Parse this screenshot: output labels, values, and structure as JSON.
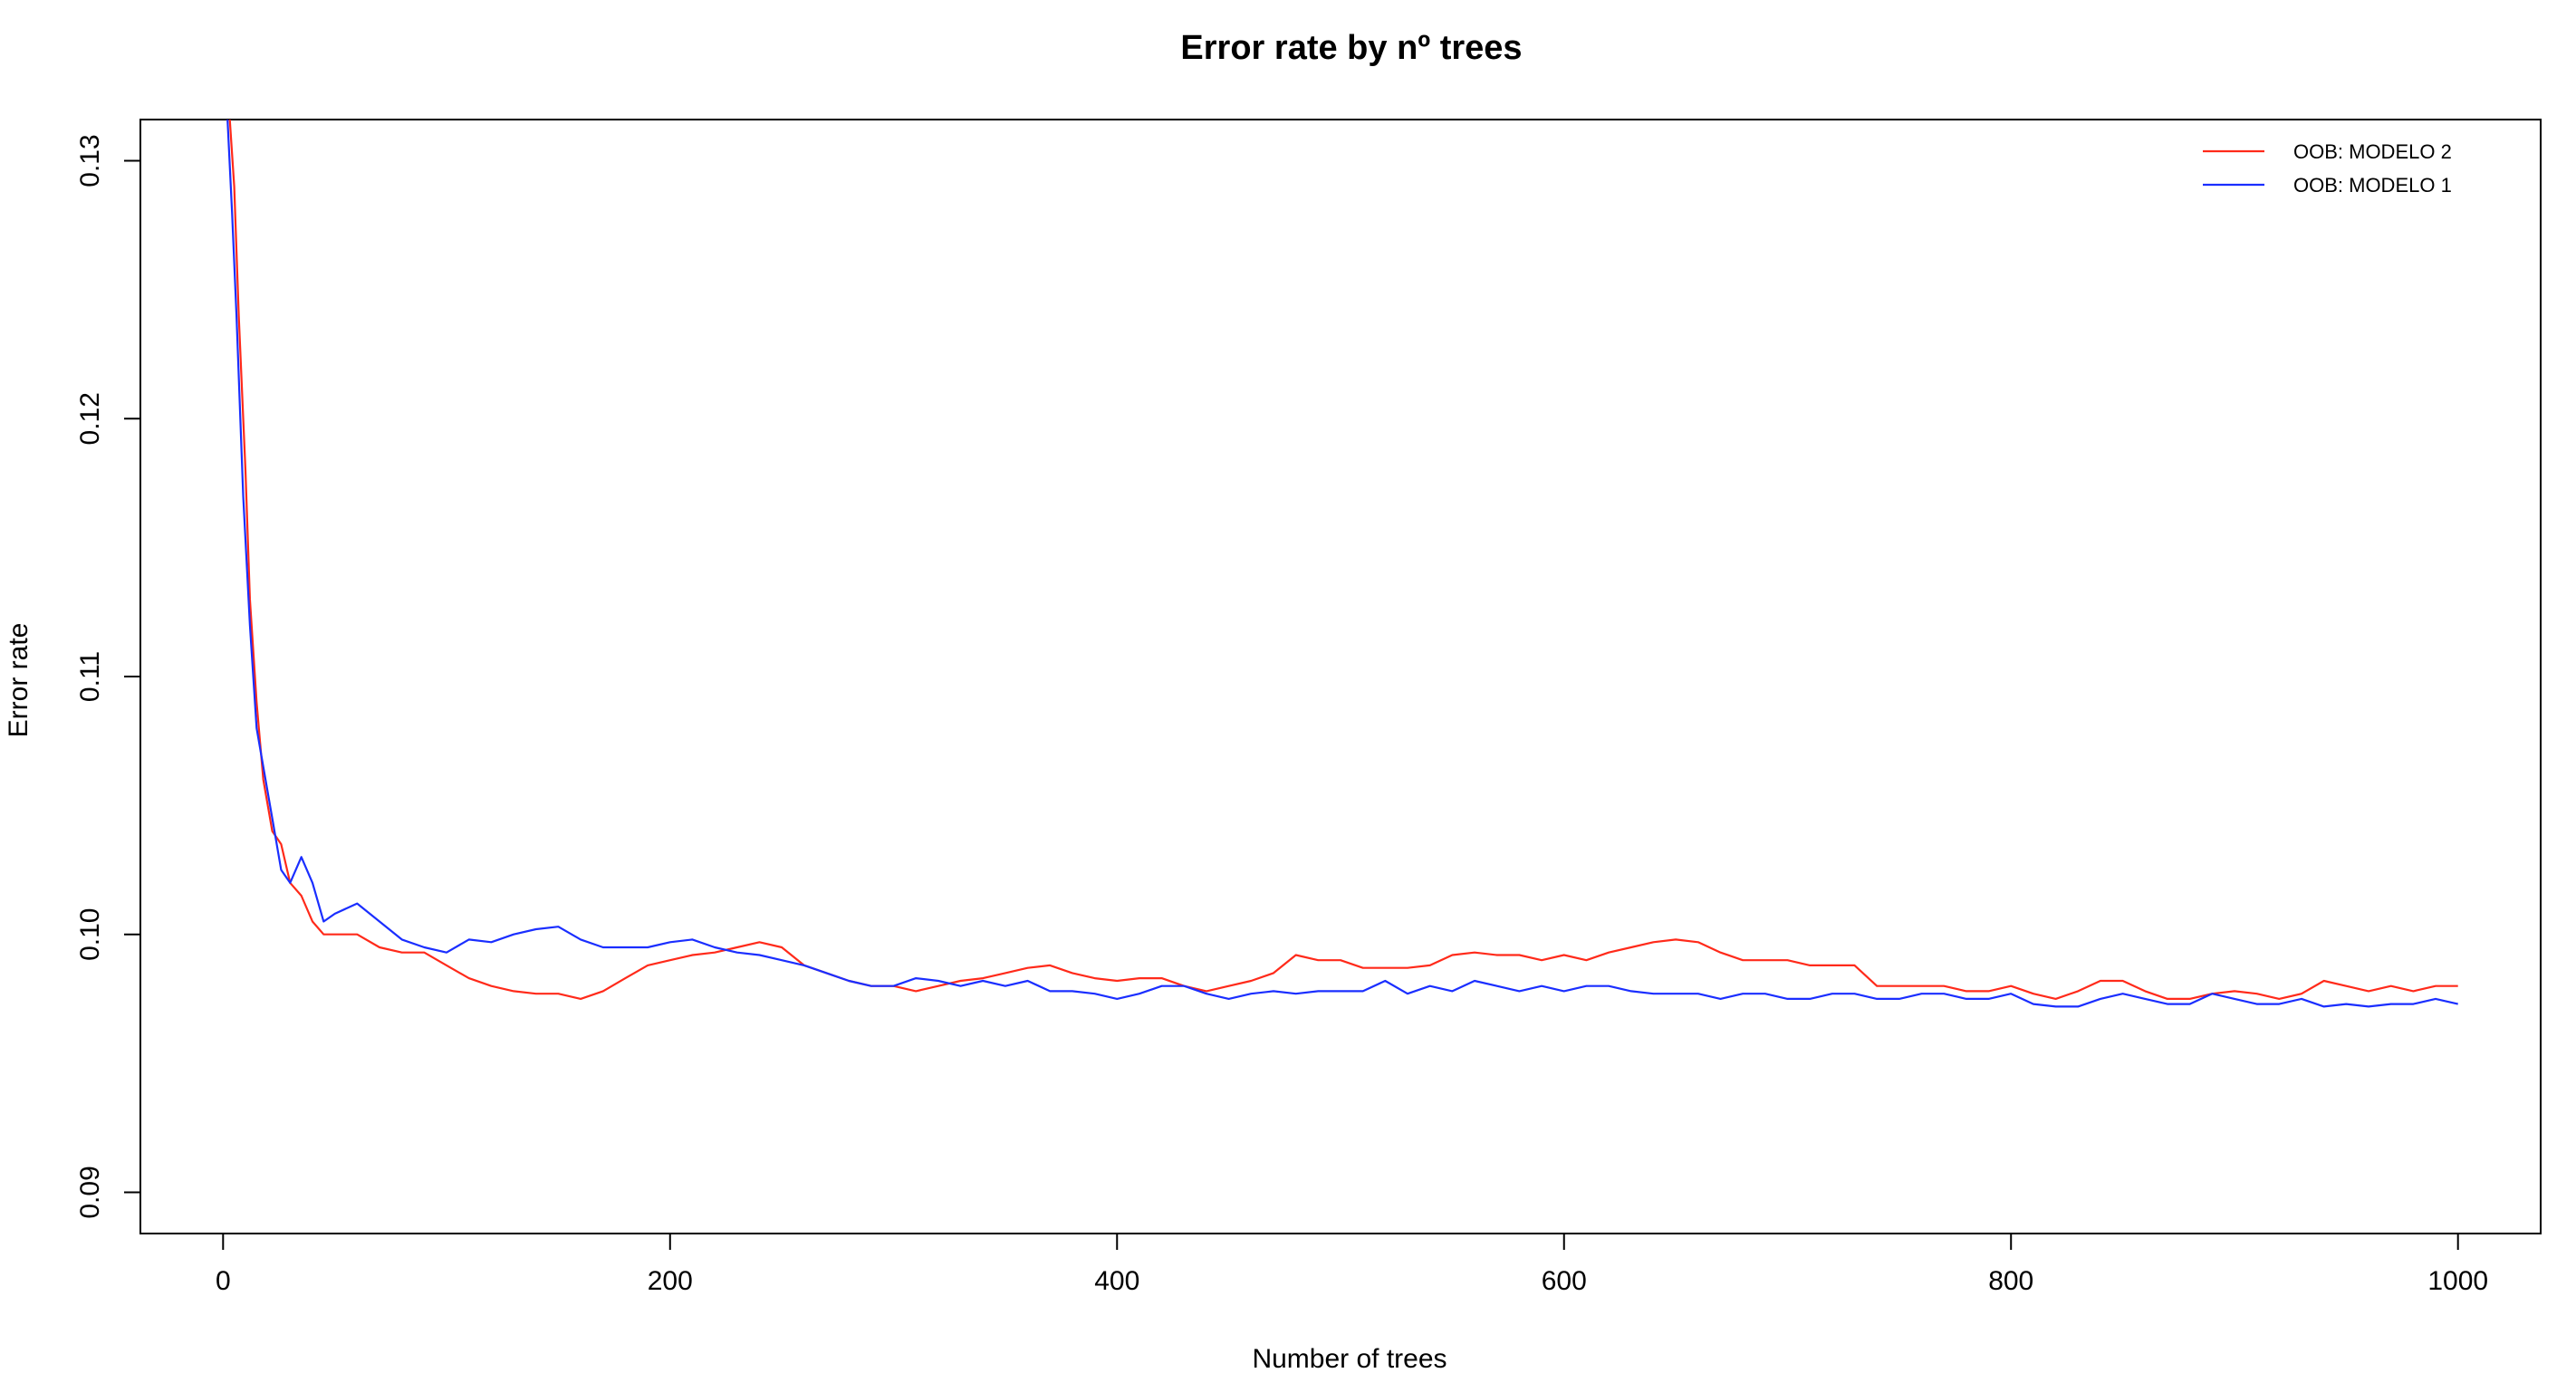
{
  "chart_data": {
    "type": "line",
    "title": "Error rate by nº trees",
    "xlabel": "Number of trees",
    "ylabel": "Error rate",
    "xlim": [
      -37,
      1037
    ],
    "ylim": [
      0.0884,
      0.1316
    ],
    "x_ticks": [
      0,
      200,
      400,
      600,
      800,
      1000
    ],
    "y_ticks": [
      0.09,
      0.1,
      0.11,
      0.12,
      0.13
    ],
    "x_tick_labels": [
      "0",
      "200",
      "400",
      "600",
      "800",
      "1000"
    ],
    "y_tick_labels": [
      "0.09",
      "0.10",
      "0.11",
      "0.12",
      "0.13"
    ],
    "grid": false,
    "legend_position": "top-right",
    "series": [
      {
        "name": "OOB: MODELO 2",
        "color": "#ff2a1a",
        "x": [
          3,
          5,
          7,
          10,
          12,
          15,
          18,
          22,
          26,
          30,
          35,
          40,
          45,
          50,
          60,
          70,
          80,
          90,
          100,
          110,
          120,
          130,
          140,
          150,
          160,
          170,
          180,
          190,
          200,
          210,
          220,
          230,
          240,
          250,
          260,
          270,
          280,
          290,
          300,
          310,
          320,
          330,
          340,
          350,
          360,
          370,
          380,
          390,
          400,
          410,
          420,
          430,
          440,
          450,
          460,
          470,
          480,
          490,
          500,
          510,
          520,
          530,
          540,
          550,
          560,
          570,
          580,
          590,
          600,
          610,
          620,
          630,
          640,
          650,
          660,
          670,
          680,
          690,
          700,
          710,
          720,
          730,
          740,
          750,
          760,
          770,
          780,
          790,
          800,
          810,
          820,
          830,
          840,
          850,
          860,
          870,
          880,
          890,
          900,
          910,
          920,
          930,
          940,
          950,
          960,
          970,
          980,
          990,
          1000
        ],
        "values": [
          0.1316,
          0.129,
          0.124,
          0.118,
          0.113,
          0.109,
          0.106,
          0.104,
          0.1035,
          0.102,
          0.1015,
          0.1005,
          0.1,
          0.1,
          0.1,
          0.0995,
          0.0993,
          0.0993,
          0.0988,
          0.0983,
          0.098,
          0.0978,
          0.0977,
          0.0977,
          0.0975,
          0.0978,
          0.0983,
          0.0988,
          0.099,
          0.0992,
          0.0993,
          0.0995,
          0.0997,
          0.0995,
          0.0988,
          0.0985,
          0.0982,
          0.098,
          0.098,
          0.0978,
          0.098,
          0.0982,
          0.0983,
          0.0985,
          0.0987,
          0.0988,
          0.0985,
          0.0983,
          0.0982,
          0.0983,
          0.0983,
          0.098,
          0.0978,
          0.098,
          0.0982,
          0.0985,
          0.0992,
          0.099,
          0.099,
          0.0987,
          0.0987,
          0.0987,
          0.0988,
          0.0992,
          0.0993,
          0.0992,
          0.0992,
          0.099,
          0.0992,
          0.099,
          0.0993,
          0.0995,
          0.0997,
          0.0998,
          0.0997,
          0.0993,
          0.099,
          0.099,
          0.099,
          0.0988,
          0.0988,
          0.0988,
          0.098,
          0.098,
          0.098,
          0.098,
          0.0978,
          0.0978,
          0.098,
          0.0977,
          0.0975,
          0.0978,
          0.0982,
          0.0982,
          0.0978,
          0.0975,
          0.0975,
          0.0977,
          0.0978,
          0.0977,
          0.0975,
          0.0977,
          0.0982,
          0.098,
          0.0978,
          0.098,
          0.0978,
          0.098,
          0.098
        ]
      },
      {
        "name": "OOB: MODELO 1",
        "color": "#1a2eff",
        "x": [
          2,
          4,
          6,
          9,
          12,
          15,
          18,
          22,
          26,
          30,
          35,
          40,
          45,
          50,
          60,
          70,
          80,
          90,
          100,
          110,
          120,
          130,
          140,
          150,
          160,
          170,
          180,
          190,
          200,
          210,
          220,
          230,
          240,
          250,
          260,
          270,
          280,
          290,
          300,
          310,
          320,
          330,
          340,
          350,
          360,
          370,
          380,
          390,
          400,
          410,
          420,
          430,
          440,
          450,
          460,
          470,
          480,
          490,
          500,
          510,
          520,
          530,
          540,
          550,
          560,
          570,
          580,
          590,
          600,
          610,
          620,
          630,
          640,
          650,
          660,
          670,
          680,
          690,
          700,
          710,
          720,
          730,
          740,
          750,
          760,
          770,
          780,
          790,
          800,
          810,
          820,
          830,
          840,
          850,
          860,
          870,
          880,
          890,
          900,
          910,
          920,
          930,
          940,
          950,
          960,
          970,
          980,
          990,
          1000
        ],
        "values": [
          0.1316,
          0.128,
          0.124,
          0.117,
          0.112,
          0.108,
          0.1065,
          0.1045,
          0.1025,
          0.102,
          0.103,
          0.102,
          0.1005,
          0.1008,
          0.1012,
          0.1005,
          0.0998,
          0.0995,
          0.0993,
          0.0998,
          0.0997,
          0.1,
          0.1002,
          0.1003,
          0.0998,
          0.0995,
          0.0995,
          0.0995,
          0.0997,
          0.0998,
          0.0995,
          0.0993,
          0.0992,
          0.099,
          0.0988,
          0.0985,
          0.0982,
          0.098,
          0.098,
          0.0983,
          0.0982,
          0.098,
          0.0982,
          0.098,
          0.0982,
          0.0978,
          0.0978,
          0.0977,
          0.0975,
          0.0977,
          0.098,
          0.098,
          0.0977,
          0.0975,
          0.0977,
          0.0978,
          0.0977,
          0.0978,
          0.0978,
          0.0978,
          0.0982,
          0.0977,
          0.098,
          0.0978,
          0.0982,
          0.098,
          0.0978,
          0.098,
          0.0978,
          0.098,
          0.098,
          0.0978,
          0.0977,
          0.0977,
          0.0977,
          0.0975,
          0.0977,
          0.0977,
          0.0975,
          0.0975,
          0.0977,
          0.0977,
          0.0975,
          0.0975,
          0.0977,
          0.0977,
          0.0975,
          0.0975,
          0.0977,
          0.0973,
          0.0972,
          0.0972,
          0.0975,
          0.0977,
          0.0975,
          0.0973,
          0.0973,
          0.0977,
          0.0975,
          0.0973,
          0.0973,
          0.0975,
          0.0972,
          0.0973,
          0.0972,
          0.0973,
          0.0973,
          0.0975,
          0.0973
        ]
      }
    ]
  }
}
